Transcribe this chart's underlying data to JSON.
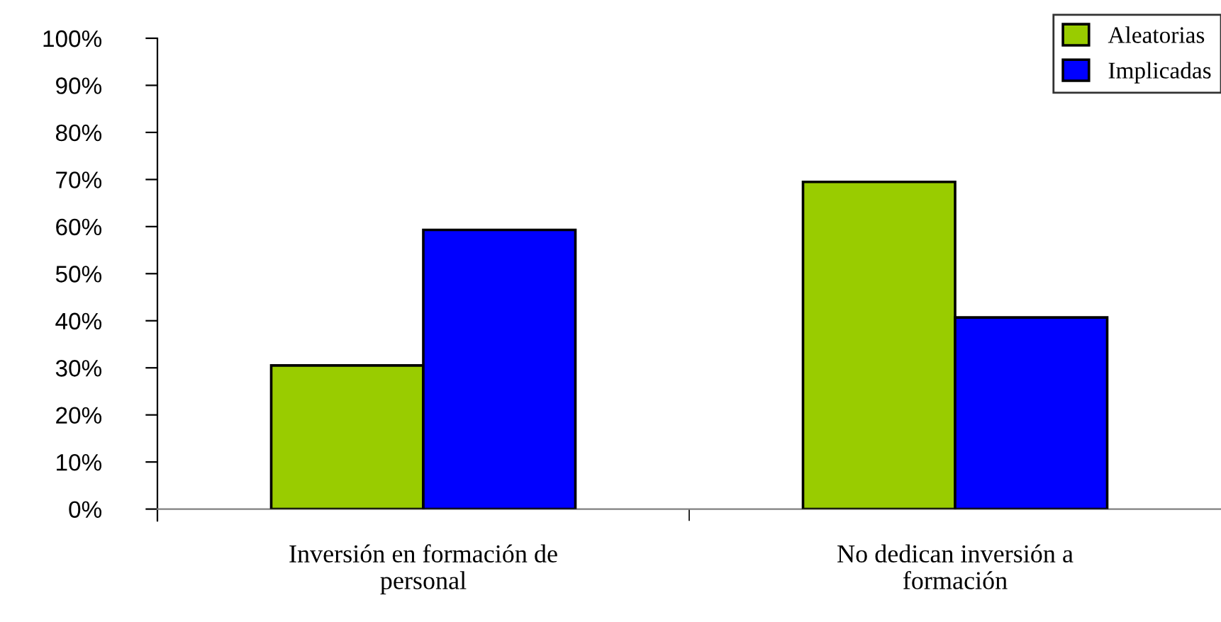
{
  "chart_data": {
    "type": "bar",
    "categories": [
      "Inversión en formación de\npersonal",
      "No dedican inversión a\nformación"
    ],
    "series": [
      {
        "name": "Aleatorias",
        "color": "#99cc00",
        "values": [
          30.5,
          69.5
        ]
      },
      {
        "name": "Implicadas",
        "color": "#0000ff",
        "values": [
          59.3,
          40.7
        ]
      }
    ],
    "ylim": [
      0,
      100
    ],
    "yticks": [
      {
        "value": 0,
        "label": "0%"
      },
      {
        "value": 10,
        "label": "10%"
      },
      {
        "value": 20,
        "label": "20%"
      },
      {
        "value": 30,
        "label": "30%"
      },
      {
        "value": 40,
        "label": "40%"
      },
      {
        "value": 50,
        "label": "50%"
      },
      {
        "value": 60,
        "label": "60%"
      },
      {
        "value": 70,
        "label": "70%"
      },
      {
        "value": 80,
        "label": "80%"
      },
      {
        "value": 90,
        "label": "90%"
      },
      {
        "value": 100,
        "label": "100%"
      }
    ],
    "grid": false,
    "legend": "top right"
  }
}
